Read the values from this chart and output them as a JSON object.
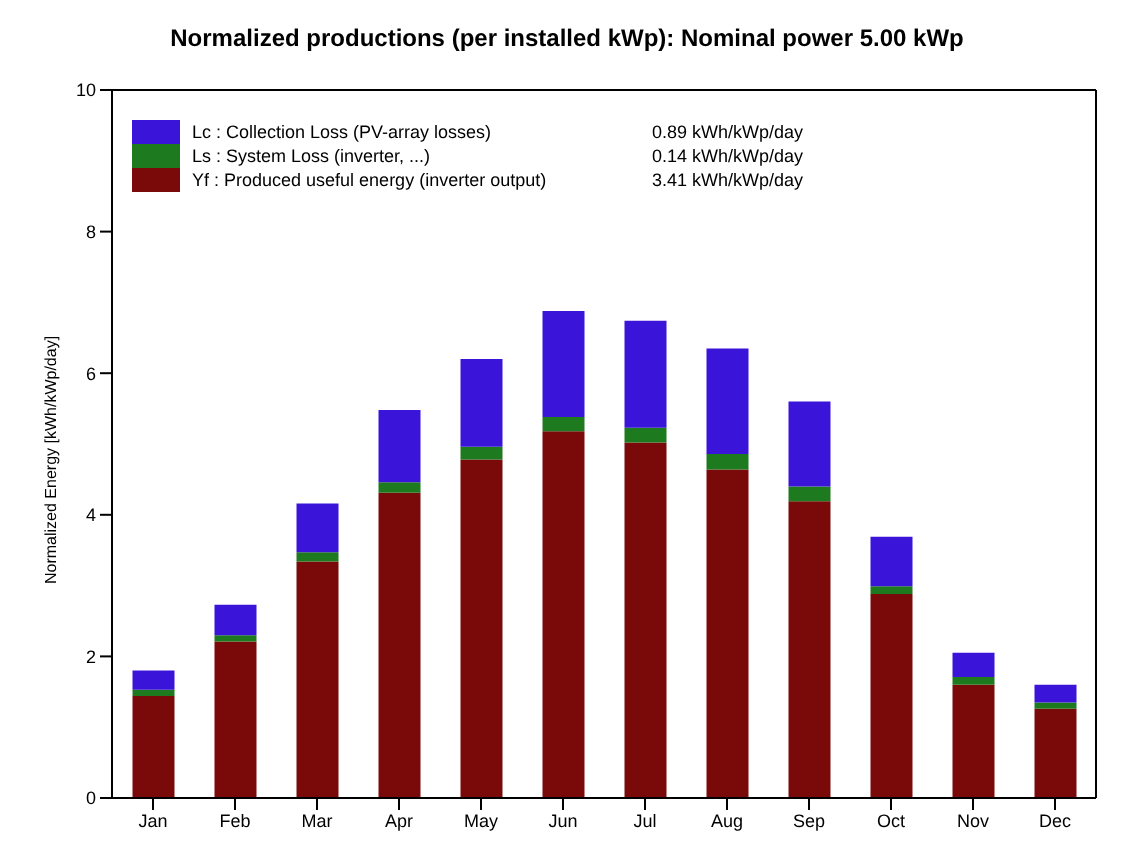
{
  "chart_data": {
    "type": "bar",
    "title": "Normalized productions (per installed kWp):  Nominal power 5.00 kWp",
    "ylabel": "Normalized Energy [kWh/kWp/day]",
    "categories": [
      "Jan",
      "Feb",
      "Mar",
      "Apr",
      "May",
      "Jun",
      "Jul",
      "Aug",
      "Sep",
      "Oct",
      "Nov",
      "Dec"
    ],
    "stacked": true,
    "series": [
      {
        "name": "Yf : Produced useful energy  (inverter output)",
        "color": "#7a0a0a",
        "values": [
          1.44,
          2.21,
          3.34,
          4.31,
          4.78,
          5.18,
          5.02,
          4.64,
          4.19,
          2.88,
          1.6,
          1.26
        ]
      },
      {
        "name": "Ls : System Loss  (inverter, ...)",
        "color": "#1e7a1e",
        "values": [
          0.09,
          0.09,
          0.13,
          0.15,
          0.18,
          0.2,
          0.21,
          0.22,
          0.21,
          0.11,
          0.11,
          0.09
        ]
      },
      {
        "name": "Lc : Collection Loss (PV-array losses)",
        "color": "#3a14d8",
        "values": [
          0.27,
          0.43,
          0.69,
          1.02,
          1.24,
          1.5,
          1.51,
          1.49,
          1.2,
          0.7,
          0.34,
          0.25
        ]
      }
    ],
    "annotations": [
      "3.41 kWh/kWp/day",
      "0.14 kWh/kWp/day",
      "0.89 kWh/kWp/day"
    ],
    "ylim": [
      0,
      10
    ],
    "yticks": [
      0,
      2,
      4,
      6,
      8,
      10
    ],
    "legend": "top left"
  }
}
